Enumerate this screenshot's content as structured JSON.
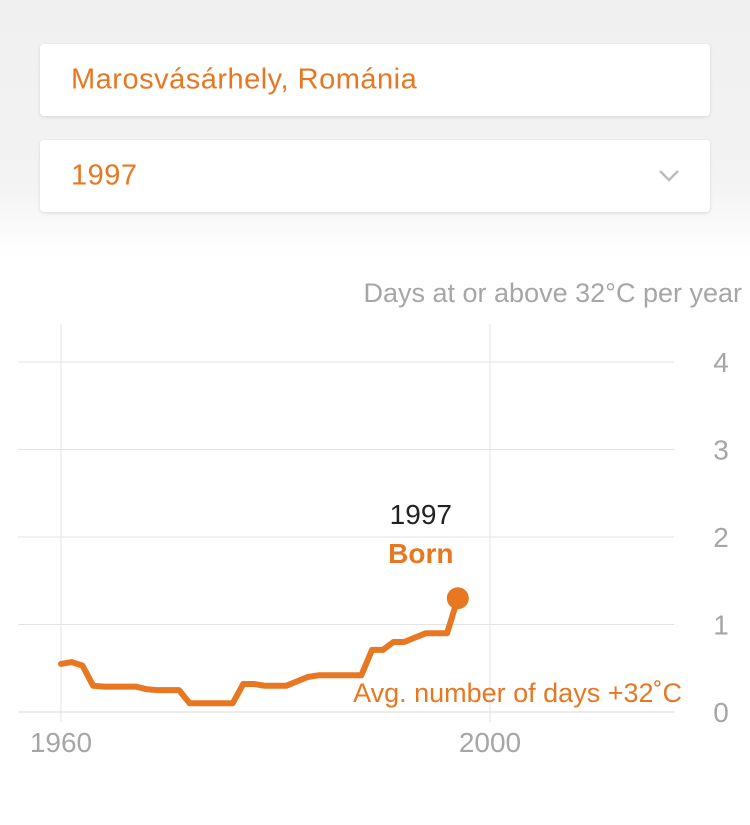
{
  "controls": {
    "location_value": "Marosvásárhely, Románia",
    "year_value": "1997"
  },
  "colors": {
    "accent": "#e87722",
    "muted_text": "#a6a6a6",
    "dark_text": "#222222",
    "grid": "#e3e3e3"
  },
  "chart_data": {
    "type": "line",
    "title": "Days at or above 32°C per year",
    "x_ticks": [
      1960,
      2000
    ],
    "y_ticks": [
      0,
      1,
      2,
      3,
      4
    ],
    "xlim": [
      1960,
      2000
    ],
    "ylim": [
      0,
      4
    ],
    "grid": true,
    "series": [
      {
        "name": "Avg. number of days +32˚C",
        "x": [
          1960,
          1961,
          1962,
          1963,
          1964,
          1965,
          1966,
          1967,
          1968,
          1969,
          1970,
          1971,
          1972,
          1973,
          1974,
          1975,
          1976,
          1977,
          1978,
          1979,
          1980,
          1981,
          1982,
          1983,
          1984,
          1985,
          1986,
          1987,
          1988,
          1989,
          1990,
          1991,
          1992,
          1993,
          1994,
          1995,
          1996,
          1997
        ],
        "y": [
          0.55,
          0.57,
          0.53,
          0.3,
          0.29,
          0.29,
          0.29,
          0.29,
          0.26,
          0.25,
          0.25,
          0.25,
          0.1,
          0.1,
          0.1,
          0.1,
          0.1,
          0.32,
          0.32,
          0.3,
          0.3,
          0.3,
          0.35,
          0.4,
          0.42,
          0.42,
          0.42,
          0.42,
          0.42,
          0.71,
          0.71,
          0.8,
          0.8,
          0.85,
          0.9,
          0.9,
          0.9,
          1.3
        ]
      }
    ],
    "highlight": {
      "year": "1997",
      "label": "Born",
      "x": 1997,
      "y": 1.3
    }
  }
}
